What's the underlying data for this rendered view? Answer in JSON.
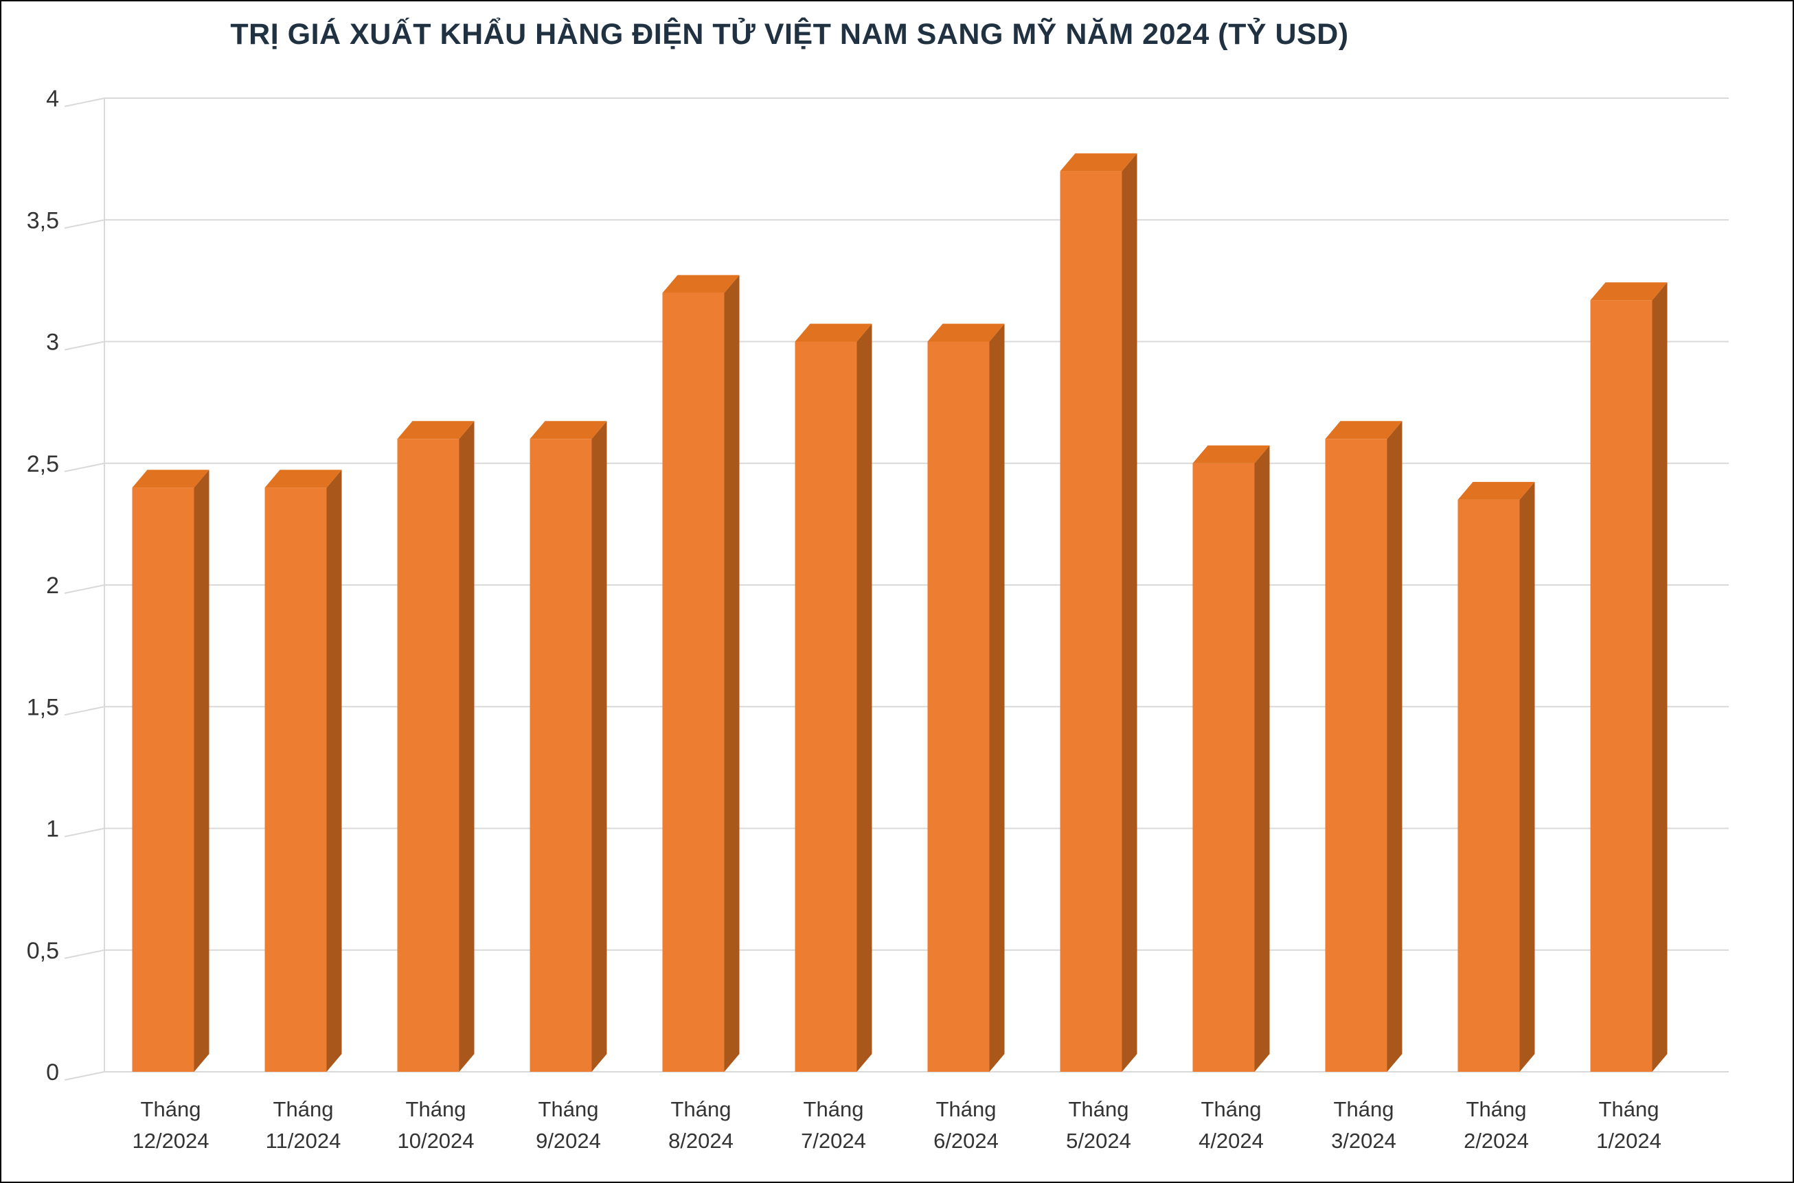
{
  "chart_data": {
    "type": "bar",
    "title": "TRỊ GIÁ XUẤT KHẨU HÀNG ĐIỆN TỬ VIỆT NAM SANG MỸ NĂM 2024 (TỶ USD)",
    "categories": [
      [
        "Tháng",
        "12/2024"
      ],
      [
        "Tháng",
        "11/2024"
      ],
      [
        "Tháng",
        "10/2024"
      ],
      [
        "Tháng",
        "9/2024"
      ],
      [
        "Tháng",
        "8/2024"
      ],
      [
        "Tháng",
        "7/2024"
      ],
      [
        "Tháng",
        "6/2024"
      ],
      [
        "Tháng",
        "5/2024"
      ],
      [
        "Tháng",
        "4/2024"
      ],
      [
        "Tháng",
        "3/2024"
      ],
      [
        "Tháng",
        "2/2024"
      ],
      [
        "Tháng",
        "1/2024"
      ]
    ],
    "values": [
      2.4,
      2.4,
      2.6,
      2.6,
      3.2,
      3.0,
      3.0,
      3.7,
      2.5,
      2.6,
      2.35,
      3.17
    ],
    "xlabel": "",
    "ylabel": "",
    "ylim": [
      0,
      4
    ],
    "ytick_step": 0.5,
    "ytick_labels": [
      "0",
      "0,5",
      "1",
      "1,5",
      "2",
      "2,5",
      "3",
      "3,5",
      "4"
    ],
    "grid": true,
    "legend": "none",
    "style": "3d-column",
    "colors": {
      "bar_front": "#ED7D31",
      "bar_side": "#A9571B",
      "bar_top": "#E1721F",
      "gridline": "#D9D9D9",
      "axis_text": "#333333",
      "title": "#203142",
      "background": "#FFFFFF",
      "border": "#000000"
    }
  }
}
